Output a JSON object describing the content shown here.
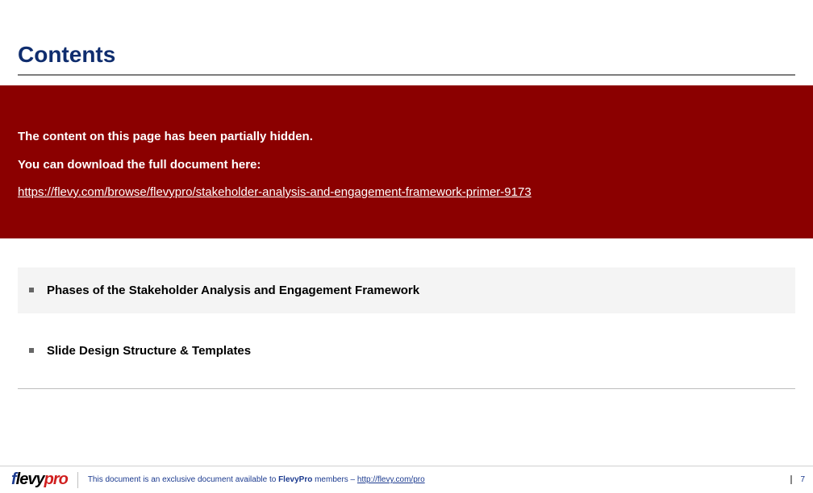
{
  "title": "Contents",
  "banner": {
    "line1": "The content on this page has been partially hidden.",
    "line2": "You can download the full document here:",
    "link_text": "https://flevy.com/browse/flevypro/stakeholder-analysis-and-engagement-framework-primer-9173"
  },
  "items": [
    {
      "label": "Phases of the Stakeholder Analysis and Engagement Framework",
      "active": true
    },
    {
      "label": "Slide Design Structure & Templates",
      "active": false
    }
  ],
  "footer": {
    "logo_f": "f",
    "logo_levy": "levy",
    "logo_pro": "pro",
    "text_prefix": "This document is an exclusive document available to ",
    "text_bold": "FlevyPro",
    "text_suffix": " members – ",
    "link_text": "http://flevy.com/pro",
    "page_number": "7"
  },
  "colors": {
    "title": "#0f2d6e",
    "banner_bg": "#8b0000",
    "active_bg": "#f4f4f4",
    "footer_text": "#1b3a8f"
  }
}
